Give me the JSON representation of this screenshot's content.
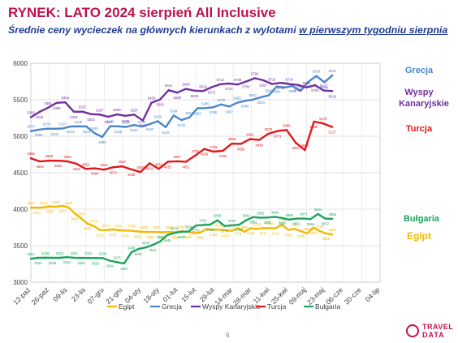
{
  "header": {
    "title": "RYNEK: LATO 2024 sierpień All Inclusive",
    "subtitle_main": "Średnie ceny wycieczek na głównych kierunkach z wylotami ",
    "subtitle_emph": "w pierwszym tygodniu sierpnia"
  },
  "footer": {
    "page_number": "6",
    "logo_line1": "TRAVEL",
    "logo_line2": "DATA"
  },
  "colors": {
    "title": "#c0114a",
    "subtitle": "#1f3a93"
  },
  "chart_data": {
    "type": "line",
    "ylim": [
      3000,
      6000
    ],
    "yticks": [
      3000,
      3500,
      4000,
      4500,
      5000,
      5500,
      6000
    ],
    "x_tick_labels": [
      "12-paź",
      "26-paź",
      "09-lis",
      "23-lis",
      "07-gru",
      "21-gru",
      "04-sty",
      "18-sty",
      "01-lut",
      "15-lut",
      "29-lut",
      "14-mar",
      "28-mar",
      "11-kwi",
      "25-kwi",
      "09-maj",
      "23-maj",
      "06-cze",
      "20-cze",
      "04-lip"
    ],
    "grid": true,
    "legend_position": "bottom",
    "series": [
      {
        "name": "Egipt",
        "color": "#f5b800",
        "label_text": "Egipt",
        "values": [
          4022,
          4021,
          4024,
          4038,
          4035,
          4047,
          4025,
          3941,
          3874,
          3803,
          3770,
          3715,
          3713,
          3723,
          3711,
          3708,
          3704,
          3695,
          3689,
          3688,
          3687,
          3683,
          3688,
          3684,
          3697,
          3690,
          3671,
          3682,
          3729,
          3720,
          3719,
          3712,
          3703,
          3741,
          3690,
          3738,
          3730,
          3741,
          3740,
          3741,
          3786,
          3718,
          3730,
          3700,
          3668,
          3747,
          3701,
          3668,
          3655
        ]
      },
      {
        "name": "Grecja",
        "color": "#4a86c8",
        "label_text": "Grecja",
        "values": [
          5070,
          5090,
          5103,
          5102,
          5107,
          5133,
          5135,
          5134,
          5045,
          4990,
          5138,
          5135,
          5128,
          5153,
          5133,
          5167,
          5206,
          5125,
          5284,
          5222,
          5257,
          5383,
          5385,
          5398,
          5435,
          5407,
          5459,
          5484,
          5502,
          5534,
          5561,
          5681,
          5669,
          5688,
          5621,
          5748,
          5826,
          5740,
          5832
        ]
      },
      {
        "name": "Wyspy Kanaryjskie",
        "color": "#7030a0",
        "label_text": "Wyspy Kanaryjskie",
        "values": [
          5260,
          5333,
          5391,
          5458,
          5464,
          5336,
          5337,
          5302,
          5297,
          5267,
          5299,
          5280,
          5297,
          5215,
          5459,
          5503,
          5631,
          5598,
          5649,
          5625,
          5619,
          5672,
          5712,
          5722,
          5709,
          5750,
          5794,
          5767,
          5716,
          5731,
          5714,
          5703,
          5668,
          5700,
          5627,
          5619
        ]
      },
      {
        "name": "Turcja",
        "color": "#e0161b",
        "label_text": "Turcja",
        "values": [
          4698,
          4654,
          4665,
          4664,
          4656,
          4623,
          4552,
          4560,
          4542,
          4574,
          4587,
          4545,
          4509,
          4629,
          4552,
          4651,
          4657,
          4651,
          4735,
          4826,
          4789,
          4799,
          4898,
          4895,
          4961,
          4949,
          5033,
          5071,
          5086,
          4910,
          4810,
          5200,
          5176,
          5127
        ]
      },
      {
        "name": "Bułgaria",
        "color": "#1aa55a",
        "label_text": "Bułgaria",
        "values": [
          3321,
          3333,
          3336,
          3335,
          3333,
          3343,
          3334,
          3332,
          3331,
          3330,
          3330,
          3294,
          3275,
          3257,
          3408,
          3457,
          3476,
          3511,
          3557,
          3645,
          3675,
          3691,
          3696,
          3777,
          3782,
          3790,
          3848,
          3770,
          3780,
          3787,
          3849,
          3892,
          3882,
          3887,
          3896,
          3880,
          3858,
          3871,
          3873,
          3864,
          3934,
          3872,
          3868
        ]
      }
    ]
  }
}
